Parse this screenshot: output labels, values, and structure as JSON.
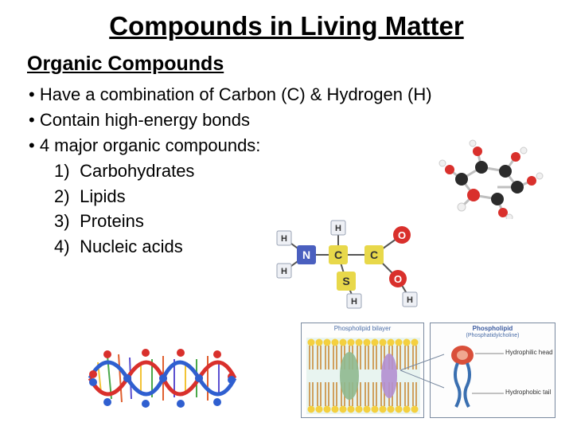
{
  "title": "Compounds in Living Matter",
  "subtitle": "Organic Compounds",
  "bullets": [
    "Have a combination of Carbon (C) & Hydrogen (H)",
    "Contain high-energy bonds",
    "4 major organic compounds:"
  ],
  "numbered": [
    {
      "n": "1)",
      "t": "Carbohydrates"
    },
    {
      "n": "2)",
      "t": "Lipids"
    },
    {
      "n": "3)",
      "t": "Proteins"
    },
    {
      "n": "4)",
      "t": "Nucleic acids"
    }
  ],
  "diagram_bilayer": {
    "caption": "Phospholipid bilayer",
    "box_bg": "#fdfdfd",
    "head_color": "#f4d03f",
    "tail_color": "#c98b3a",
    "interior_color": "#e8f4f0"
  },
  "diagram_phospholipid": {
    "caption_top": "Phospholipid",
    "caption_sub": "(Phosphatidylcholine)",
    "label_head": "Hydrophilic head",
    "label_tail": "Hydrophobic tail",
    "head_color": "#d94f3a",
    "tail_color": "#3a6fb0"
  },
  "diagram_molecule3d": {
    "carbon_color": "#2b2b2b",
    "oxygen_color": "#d9302c",
    "hydrogen_color": "#f0f0f0",
    "bond_color": "#bfbfbf"
  },
  "diagram_structural": {
    "atoms": {
      "N": {
        "label": "N",
        "fill": "#4a5fbf"
      },
      "C1": {
        "label": "C",
        "fill": "#e8d84a"
      },
      "C2": {
        "label": "C",
        "fill": "#e8d84a"
      },
      "S": {
        "label": "S",
        "fill": "#e8d84a"
      },
      "O1": {
        "label": "O",
        "fill": "#d9302c"
      },
      "O2": {
        "label": "O",
        "fill": "#d9302c"
      }
    },
    "h_label": "H",
    "h_box_fill": "#eef0f5",
    "h_box_stroke": "#9aa3b5"
  },
  "diagram_dna": {
    "backbone1": "#2f5fd0",
    "backbone2": "#d9302c",
    "base_colors": [
      "#f2c335",
      "#4aa84a",
      "#e06030",
      "#5b4fd0"
    ]
  },
  "colors": {
    "text": "#000000",
    "bg": "#ffffff",
    "figure_border": "#7a8aa0"
  }
}
